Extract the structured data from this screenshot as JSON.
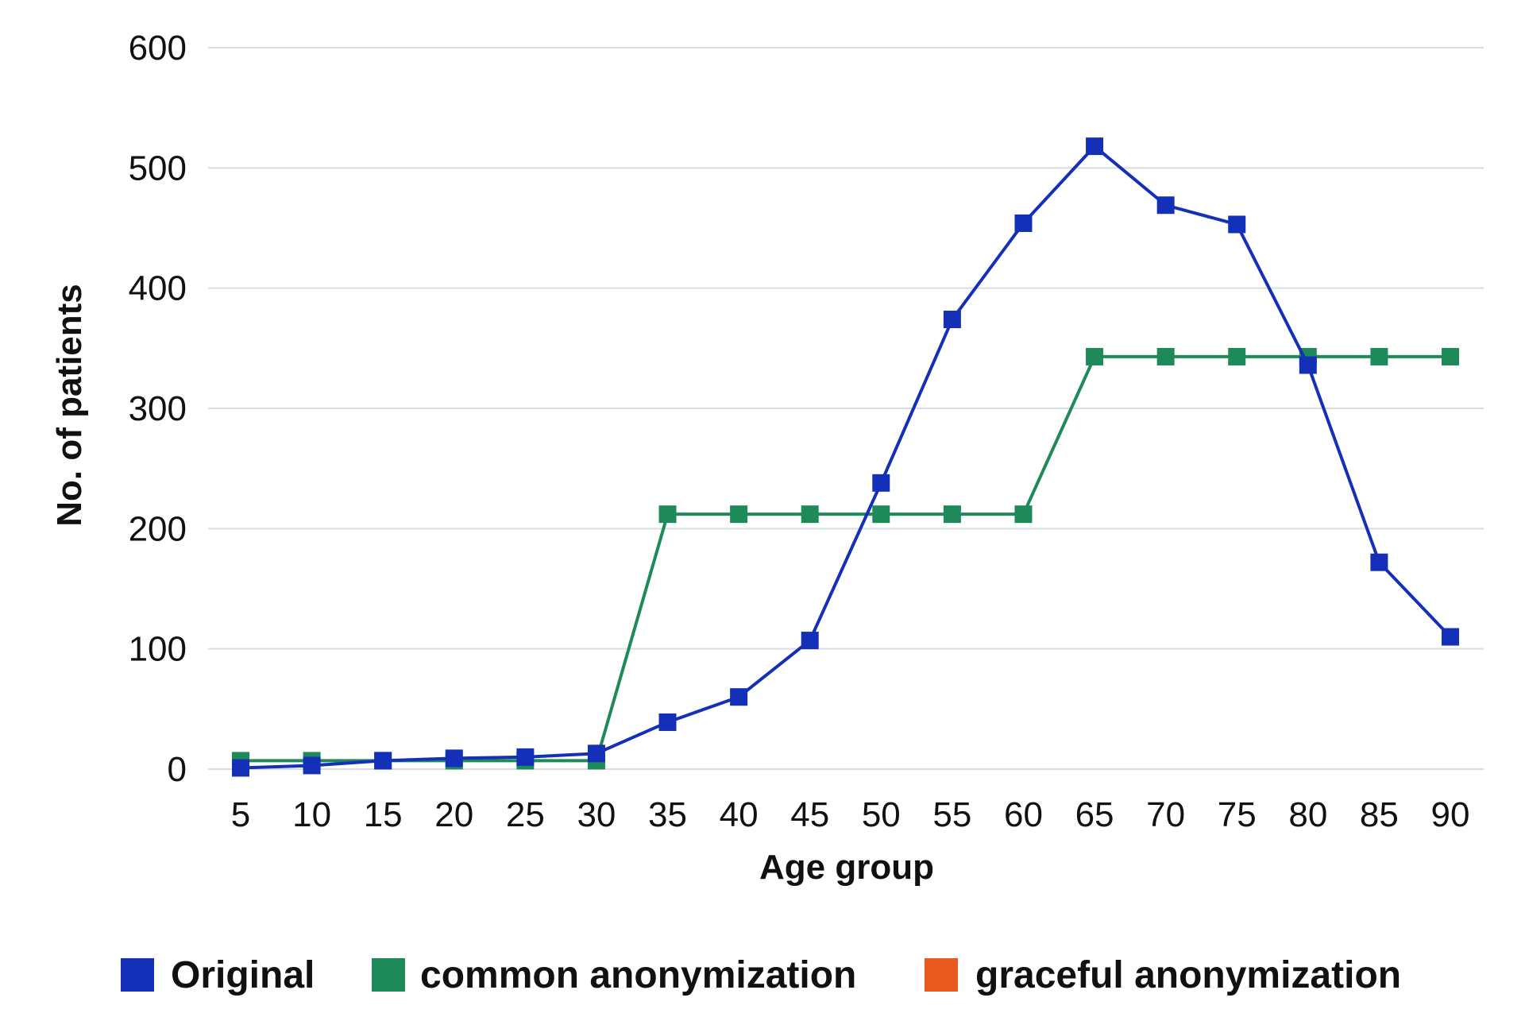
{
  "chart_data": {
    "type": "line",
    "x": [
      5,
      10,
      15,
      20,
      25,
      30,
      35,
      40,
      45,
      50,
      55,
      60,
      65,
      70,
      75,
      80,
      85,
      90
    ],
    "xlabel": "Age group",
    "ylabel": "No. of patients",
    "ylim": [
      0,
      600
    ],
    "yticks": [
      0,
      100,
      200,
      300,
      400,
      500,
      600
    ],
    "grid": true,
    "legend_position": "bottom",
    "series": [
      {
        "name": "common anonymization",
        "color": "#1e8a5a",
        "values": [
          7,
          7,
          7,
          7,
          7,
          7,
          212,
          212,
          212,
          212,
          212,
          212,
          343,
          343,
          343,
          343,
          343,
          343
        ]
      },
      {
        "name": "Original",
        "color": "#1530b8",
        "values": [
          1,
          3,
          7,
          9,
          10,
          13,
          39,
          60,
          107,
          238,
          374,
          454,
          518,
          469,
          453,
          336,
          172,
          110
        ]
      }
    ],
    "legend": [
      {
        "name": "Original",
        "color": "#1530b8"
      },
      {
        "name": "common anonymization",
        "color": "#1e8a5a"
      },
      {
        "name": "graceful anonymization",
        "color": "#e85a20"
      }
    ]
  }
}
